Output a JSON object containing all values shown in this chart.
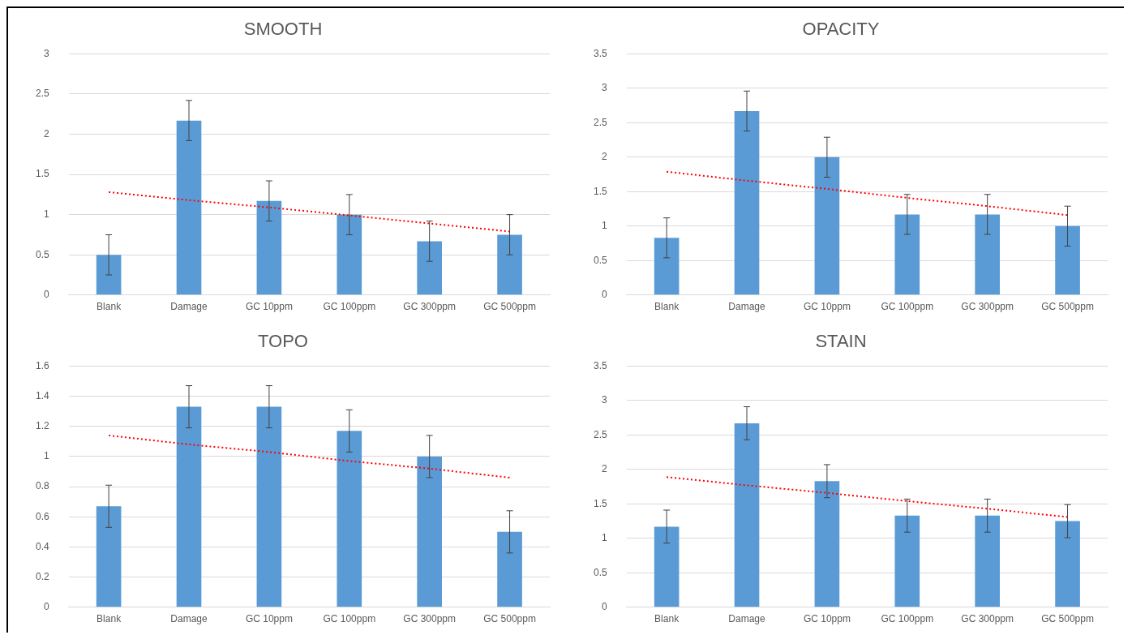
{
  "chart_data": [
    {
      "type": "bar",
      "title": "SMOOTH",
      "categories": [
        "Blank",
        "Damage",
        "GC 10ppm",
        "GC 100ppm",
        "GC 300ppm",
        "GC 500ppm"
      ],
      "ylim": [
        0,
        3
      ],
      "yticks": [
        0,
        0.5,
        1,
        1.5,
        2,
        2.5,
        3
      ],
      "grid": "y",
      "legend": false,
      "series": [
        {
          "color": "#5b9bd5",
          "values": [
            0.5,
            2.17,
            1.17,
            1.0,
            0.67,
            0.75
          ],
          "errors": [
            0.25,
            0.25,
            0.25,
            0.25,
            0.25,
            0.25
          ]
        },
        {
          "type": "line",
          "color": "#ff0000",
          "line_style": "dotted",
          "marker": "none",
          "x": [
            "Blank",
            "Damage",
            "GC 10ppm",
            "GC 100ppm",
            "GC 300ppm",
            "GC 500ppm"
          ],
          "values": [
            1.28,
            1.18,
            1.09,
            0.99,
            0.89,
            0.79
          ]
        }
      ]
    },
    {
      "type": "bar",
      "title": "OPACITY",
      "categories": [
        "Blank",
        "Damage",
        "GC 10ppm",
        "GC 100ppm",
        "GC 300ppm",
        "GC 500ppm"
      ],
      "ylim": [
        0,
        3.5
      ],
      "yticks": [
        0,
        0.5,
        1,
        1.5,
        2,
        2.5,
        3,
        3.5
      ],
      "grid": "y",
      "legend": false,
      "series": [
        {
          "color": "#5b9bd5",
          "values": [
            0.83,
            2.67,
            2.0,
            1.17,
            1.17,
            1.0
          ],
          "errors": [
            0.29,
            0.29,
            0.29,
            0.29,
            0.29,
            0.29
          ]
        },
        {
          "type": "line",
          "color": "#ff0000",
          "line_style": "dotted",
          "marker": "none",
          "x": [
            "Blank",
            "Damage",
            "GC 10ppm",
            "GC 100ppm",
            "GC 300ppm",
            "GC 500ppm"
          ],
          "values": [
            1.79,
            1.66,
            1.54,
            1.41,
            1.29,
            1.16
          ]
        }
      ]
    },
    {
      "type": "bar",
      "title": "TOPO",
      "categories": [
        "Blank",
        "Damage",
        "GC 10ppm",
        "GC 100ppm",
        "GC 300ppm",
        "GC 500ppm"
      ],
      "ylim": [
        0,
        1.6
      ],
      "yticks": [
        0,
        0.2,
        0.4,
        0.6,
        0.8,
        1,
        1.2,
        1.4,
        1.6
      ],
      "grid": "y",
      "legend": false,
      "series": [
        {
          "color": "#5b9bd5",
          "values": [
            0.67,
            1.33,
            1.33,
            1.17,
            1.0,
            0.5
          ],
          "errors": [
            0.14,
            0.14,
            0.14,
            0.14,
            0.14,
            0.14
          ]
        },
        {
          "type": "line",
          "color": "#ff0000",
          "line_style": "dotted",
          "marker": "none",
          "x": [
            "Blank",
            "Damage",
            "GC 10ppm",
            "GC 100ppm",
            "GC 300ppm",
            "GC 500ppm"
          ],
          "values": [
            1.14,
            1.08,
            1.03,
            0.97,
            0.92,
            0.86
          ]
        }
      ]
    },
    {
      "type": "bar",
      "title": "STAIN",
      "categories": [
        "Blank",
        "Damage",
        "GC 10ppm",
        "GC 100ppm",
        "GC 300ppm",
        "GC 500ppm"
      ],
      "ylim": [
        0,
        3.5
      ],
      "yticks": [
        0,
        0.5,
        1,
        1.5,
        2,
        2.5,
        3,
        3.5
      ],
      "grid": "y",
      "legend": false,
      "series": [
        {
          "color": "#5b9bd5",
          "values": [
            1.17,
            2.67,
            1.83,
            1.33,
            1.33,
            1.25
          ],
          "errors": [
            0.24,
            0.24,
            0.24,
            0.24,
            0.24,
            0.24
          ]
        },
        {
          "type": "line",
          "color": "#ff0000",
          "line_style": "dotted",
          "marker": "none",
          "x": [
            "Blank",
            "Damage",
            "GC 10ppm",
            "GC 100ppm",
            "GC 300ppm",
            "GC 500ppm"
          ],
          "values": [
            1.89,
            1.77,
            1.66,
            1.54,
            1.43,
            1.31
          ]
        }
      ]
    }
  ]
}
